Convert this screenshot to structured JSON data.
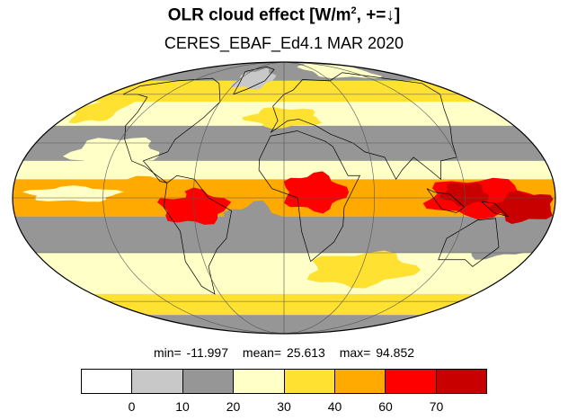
{
  "title": {
    "main": "OLR cloud effect [W/m",
    "sup": "2",
    "tail": ", +=↓]"
  },
  "subtitle": "CERES_EBAF_Ed4.1 MAR 2020",
  "stats": {
    "min": "min= -11.997",
    "mean": "mean= 25.613",
    "max": "max= 94.852"
  },
  "colorbar": {
    "colors": [
      "#ffffff",
      "#c8c8c8",
      "#969696",
      "#ffffc8",
      "#ffe132",
      "#ffaa00",
      "#ff0000",
      "#c80000"
    ],
    "ticks": [
      "0",
      "10",
      "20",
      "30",
      "40",
      "60",
      "70"
    ]
  },
  "map_bands": [
    {
      "lat_from": 90,
      "lat_to": 70,
      "fill": "#969696"
    },
    {
      "lat_from": 70,
      "lat_to": 55,
      "fill": "#ffe132"
    },
    {
      "lat_from": 55,
      "lat_to": 40,
      "fill": "#ffffc8"
    },
    {
      "lat_from": 40,
      "lat_to": 20,
      "fill": "#969696"
    },
    {
      "lat_from": 20,
      "lat_to": 10,
      "fill": "#ffffc8"
    },
    {
      "lat_from": 10,
      "lat_to": -10,
      "fill": "#ffaa00"
    },
    {
      "lat_from": -10,
      "lat_to": -30,
      "fill": "#969696"
    },
    {
      "lat_from": -30,
      "lat_to": -55,
      "fill": "#ffffc8"
    },
    {
      "lat_from": -55,
      "lat_to": -70,
      "fill": "#ffe132"
    },
    {
      "lat_from": -70,
      "lat_to": -90,
      "fill": "#969696"
    }
  ],
  "map_patches": [
    {
      "lon": -60,
      "lat": -5,
      "rlon": 22,
      "rlat": 9,
      "fill": "#ff0000"
    },
    {
      "lon": 20,
      "lat": 3,
      "rlon": 20,
      "rlat": 10,
      "fill": "#ff0000"
    },
    {
      "lon": 130,
      "lat": 0,
      "rlon": 35,
      "rlat": 10,
      "fill": "#ff0000"
    },
    {
      "lon": 120,
      "lat": 2,
      "rlon": 15,
      "rlat": 6,
      "fill": "#c80000"
    },
    {
      "lon": 160,
      "lat": -5,
      "rlon": 20,
      "rlat": 8,
      "fill": "#c80000"
    },
    {
      "lon": -90,
      "lat": 5,
      "rlon": 30,
      "rlat": 6,
      "fill": "#ffaa00"
    },
    {
      "lon": -140,
      "lat": 2,
      "rlon": 30,
      "rlat": 4,
      "fill": "#ffffc8"
    },
    {
      "lon": -20,
      "lat": -15,
      "rlon": 20,
      "rlat": 12,
      "fill": "#969696"
    },
    {
      "lon": 70,
      "lat": 30,
      "rlon": 30,
      "rlat": 8,
      "fill": "#969696"
    },
    {
      "lon": -120,
      "lat": 25,
      "rlon": 30,
      "rlat": 8,
      "fill": "#ffffc8"
    },
    {
      "lon": 0,
      "lat": 45,
      "rlon": 30,
      "rlat": 6,
      "fill": "#ffe132"
    },
    {
      "lon": -160,
      "lat": 50,
      "rlon": 20,
      "rlat": 8,
      "fill": "#ffe132"
    },
    {
      "lon": 100,
      "lat": 80,
      "rlon": 60,
      "rlat": 8,
      "fill": "#ffffc8"
    },
    {
      "lon": -40,
      "lat": 72,
      "rlon": 25,
      "rlat": 8,
      "fill": "#c8c8c8"
    },
    {
      "lon": 60,
      "lat": -40,
      "rlon": 40,
      "rlat": 10,
      "fill": "#ffe132"
    },
    {
      "lon": -100,
      "lat": -45,
      "rlon": 40,
      "rlat": 8,
      "fill": "#ffffc8"
    },
    {
      "lon": 150,
      "lat": -25,
      "rlon": 25,
      "rlat": 8,
      "fill": "#969696"
    }
  ]
}
